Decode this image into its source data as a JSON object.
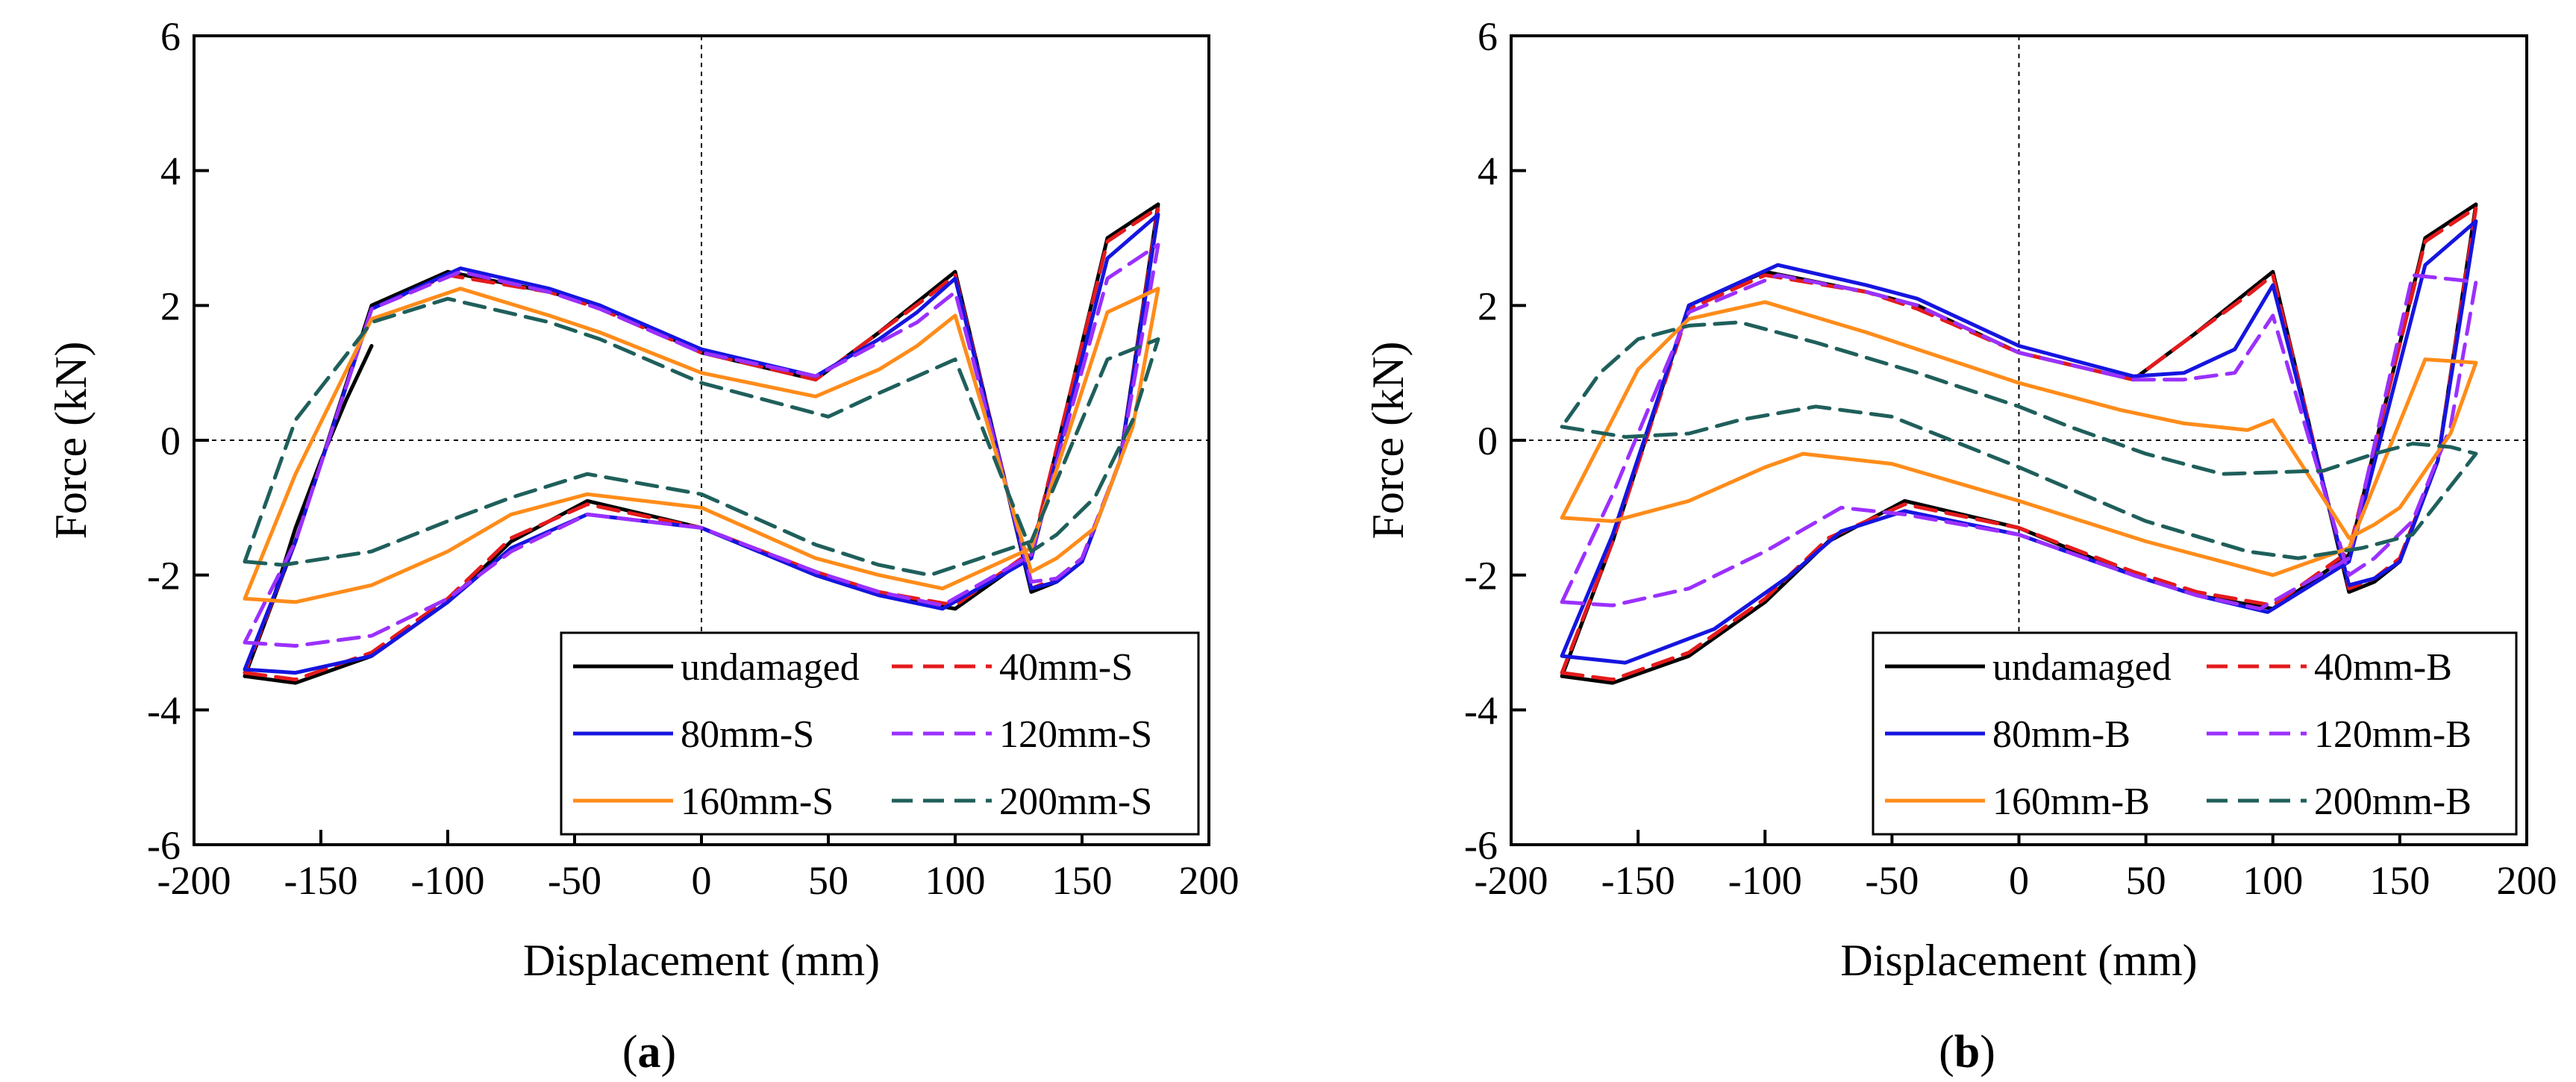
{
  "figure": {
    "panels": [
      {
        "label_open": "(",
        "label_letter": "a",
        "label_close": ")"
      },
      {
        "label_open": "(",
        "label_letter": "b",
        "label_close": ")"
      }
    ]
  },
  "chart_data": [
    {
      "type": "line",
      "panel": "a",
      "title": "",
      "xlabel": "Displacement (mm)",
      "ylabel": "Force (kN)",
      "xlim": [
        -200,
        200
      ],
      "ylim": [
        -6,
        6
      ],
      "xticks": [
        -200,
        -150,
        -100,
        -50,
        0,
        50,
        100,
        150,
        200
      ],
      "yticks": [
        -6,
        -4,
        -2,
        0,
        2,
        4,
        6
      ],
      "xtick_labels": [
        "-200",
        "-150",
        "-100",
        "-50",
        "0",
        "50",
        "100",
        "150",
        "200"
      ],
      "ytick_labels": [
        "-6",
        "-4",
        "-2",
        "0",
        "2",
        "4",
        "6"
      ],
      "grid": false,
      "reference_lines": {
        "x": 0,
        "y": 0,
        "style": "dotted"
      },
      "legend": {
        "position": "bottom-right",
        "columns": 2
      },
      "series": [
        {
          "name": "undamaged",
          "color": "#000000",
          "dash": "solid",
          "x": [
            -180,
            -160,
            -130,
            -100,
            -75,
            -45,
            0,
            45,
            70,
            100,
            130,
            160,
            180,
            165,
            150,
            140,
            130,
            100,
            90,
            70,
            45,
            0,
            -40,
            -60,
            -100,
            -130,
            -160,
            -180,
            -170,
            -160,
            -150,
            -140,
            -130
          ],
          "y": [
            -3.5,
            -3.6,
            -3.2,
            -2.4,
            -1.5,
            -0.9,
            -1.3,
            -2.0,
            -2.3,
            -2.5,
            -1.7,
            3.0,
            3.5,
            -0.3,
            -1.8,
            -2.1,
            -2.25,
            2.5,
            2.2,
            1.6,
            0.9,
            1.3,
            2.0,
            2.2,
            2.5,
            2.0,
            -1.5,
            -3.5,
            -2.5,
            -1.3,
            -0.3,
            0.6,
            1.4
          ]
        },
        {
          "name": "40mm-S",
          "color": "#e41a1c",
          "dash": "dashed",
          "x": [
            -180,
            -160,
            -130,
            -100,
            -75,
            -45,
            0,
            45,
            70,
            100,
            130,
            160,
            180,
            165,
            150,
            140,
            130,
            100,
            90,
            70,
            45,
            0,
            -40,
            -60,
            -100,
            -130,
            -160,
            -180
          ],
          "y": [
            -3.45,
            -3.55,
            -3.15,
            -2.35,
            -1.45,
            -0.95,
            -1.3,
            -1.95,
            -2.25,
            -2.45,
            -1.65,
            2.95,
            3.45,
            -0.3,
            -1.75,
            -2.05,
            -2.2,
            2.45,
            2.15,
            1.6,
            0.9,
            1.3,
            1.95,
            2.2,
            2.45,
            1.95,
            -1.5,
            -3.45
          ]
        },
        {
          "name": "80mm-S",
          "color": "#1515e0",
          "dash": "solid",
          "x": [
            -180,
            -160,
            -130,
            -100,
            -75,
            -45,
            0,
            45,
            70,
            95,
            130,
            160,
            180,
            165,
            150,
            140,
            130,
            100,
            85,
            70,
            45,
            0,
            -40,
            -60,
            -95,
            -130,
            -160,
            -180
          ],
          "y": [
            -3.4,
            -3.45,
            -3.2,
            -2.4,
            -1.6,
            -1.1,
            -1.3,
            -2.0,
            -2.3,
            -2.5,
            -1.75,
            2.7,
            3.35,
            -0.3,
            -1.8,
            -2.1,
            -2.2,
            2.4,
            1.9,
            1.5,
            0.95,
            1.35,
            2.0,
            2.25,
            2.55,
            1.95,
            -1.5,
            -3.4
          ]
        },
        {
          "name": "120mm-S",
          "color": "#9b30ff",
          "dash": "dashed",
          "x": [
            -180,
            -160,
            -130,
            -100,
            -75,
            -45,
            0,
            45,
            70,
            95,
            130,
            160,
            180,
            165,
            150,
            140,
            130,
            100,
            85,
            70,
            45,
            0,
            -40,
            -60,
            -95,
            -130,
            -160,
            -180
          ],
          "y": [
            -3.0,
            -3.05,
            -2.9,
            -2.35,
            -1.65,
            -1.1,
            -1.3,
            -1.95,
            -2.25,
            -2.45,
            -1.7,
            2.4,
            2.9,
            -0.3,
            -1.75,
            -2.05,
            -2.1,
            2.2,
            1.75,
            1.45,
            0.95,
            1.3,
            1.95,
            2.2,
            2.5,
            1.95,
            -1.5,
            -3.0
          ]
        },
        {
          "name": "160mm-S",
          "color": "#ff8c1a",
          "dash": "solid",
          "x": [
            -180,
            -160,
            -130,
            -100,
            -75,
            -45,
            0,
            45,
            70,
            95,
            130,
            160,
            180,
            170,
            155,
            140,
            130,
            100,
            85,
            70,
            45,
            0,
            -40,
            -60,
            -95,
            -130,
            -160,
            -180
          ],
          "y": [
            -2.35,
            -2.4,
            -2.15,
            -1.65,
            -1.1,
            -0.8,
            -1.0,
            -1.75,
            -2.0,
            -2.2,
            -1.6,
            1.9,
            2.25,
            0.2,
            -1.3,
            -1.75,
            -1.95,
            1.85,
            1.4,
            1.05,
            0.65,
            1.0,
            1.6,
            1.85,
            2.25,
            1.8,
            -0.5,
            -2.35
          ]
        },
        {
          "name": "200mm-S",
          "color": "#1f5f5b",
          "dash": "dashed",
          "x": [
            -180,
            -165,
            -130,
            -100,
            -75,
            -45,
            0,
            45,
            70,
            90,
            130,
            160,
            180,
            170,
            155,
            140,
            130,
            100,
            85,
            70,
            50,
            0,
            -40,
            -60,
            -100,
            -130,
            -160,
            -180
          ],
          "y": [
            -1.8,
            -1.85,
            -1.65,
            -1.2,
            -0.85,
            -0.5,
            -0.8,
            -1.55,
            -1.85,
            -2.0,
            -1.5,
            1.2,
            1.5,
            0.3,
            -0.85,
            -1.4,
            -1.65,
            1.2,
            0.95,
            0.7,
            0.35,
            0.85,
            1.5,
            1.75,
            2.1,
            1.75,
            0.3,
            -1.8
          ]
        }
      ]
    },
    {
      "type": "line",
      "panel": "b",
      "title": "",
      "xlabel": "Displacement (mm)",
      "ylabel": "Force (kN)",
      "xlim": [
        -200,
        200
      ],
      "ylim": [
        -6,
        6
      ],
      "xticks": [
        -200,
        -150,
        -100,
        -50,
        0,
        50,
        100,
        150,
        200
      ],
      "yticks": [
        -6,
        -4,
        -2,
        0,
        2,
        4,
        6
      ],
      "xtick_labels": [
        "-200",
        "-150",
        "-100",
        "-50",
        "0",
        "50",
        "100",
        "150",
        "200"
      ],
      "ytick_labels": [
        "-6",
        "-4",
        "-2",
        "0",
        "2",
        "4",
        "6"
      ],
      "grid": false,
      "reference_lines": {
        "x": 0,
        "y": 0,
        "style": "dotted"
      },
      "legend": {
        "position": "bottom-right",
        "columns": 2
      },
      "series": [
        {
          "name": "undamaged",
          "color": "#000000",
          "dash": "solid",
          "x": [
            -180,
            -160,
            -130,
            -100,
            -75,
            -45,
            0,
            45,
            70,
            100,
            130,
            160,
            180,
            165,
            150,
            140,
            130,
            100,
            90,
            70,
            45,
            0,
            -40,
            -60,
            -100,
            -130,
            -160,
            -180
          ],
          "y": [
            -3.5,
            -3.6,
            -3.2,
            -2.4,
            -1.5,
            -0.9,
            -1.3,
            -2.0,
            -2.3,
            -2.5,
            -1.7,
            3.0,
            3.5,
            -0.3,
            -1.8,
            -2.1,
            -2.25,
            2.5,
            2.2,
            1.6,
            0.9,
            1.3,
            2.0,
            2.2,
            2.5,
            2.0,
            -1.5,
            -3.5
          ]
        },
        {
          "name": "40mm-B",
          "color": "#e41a1c",
          "dash": "dashed",
          "x": [
            -180,
            -160,
            -130,
            -100,
            -75,
            -45,
            0,
            45,
            70,
            100,
            130,
            160,
            180,
            165,
            150,
            140,
            130,
            100,
            90,
            70,
            45,
            0,
            -40,
            -60,
            -100,
            -130,
            -160,
            -180
          ],
          "y": [
            -3.45,
            -3.55,
            -3.15,
            -2.35,
            -1.45,
            -0.95,
            -1.3,
            -1.95,
            -2.25,
            -2.45,
            -1.65,
            2.95,
            3.45,
            -0.3,
            -1.75,
            -2.05,
            -2.2,
            2.45,
            2.15,
            1.6,
            0.9,
            1.3,
            1.95,
            2.2,
            2.45,
            1.95,
            -1.5,
            -3.45
          ]
        },
        {
          "name": "80mm-B",
          "color": "#1515e0",
          "dash": "solid",
          "x": [
            -180,
            -155,
            -120,
            -90,
            -70,
            -45,
            0,
            45,
            70,
            98,
            130,
            160,
            180,
            165,
            150,
            140,
            130,
            100,
            85,
            65,
            45,
            0,
            -40,
            -60,
            -95,
            -130,
            -160,
            -180
          ],
          "y": [
            -3.2,
            -3.3,
            -2.8,
            -2.0,
            -1.35,
            -1.05,
            -1.4,
            -2.0,
            -2.3,
            -2.55,
            -1.8,
            2.6,
            3.25,
            -0.3,
            -1.8,
            -2.05,
            -2.15,
            2.3,
            1.35,
            1.0,
            0.95,
            1.4,
            2.1,
            2.3,
            2.6,
            2.0,
            -1.4,
            -3.2
          ]
        },
        {
          "name": "120mm-B",
          "color": "#9b30ff",
          "dash": "dashed",
          "x": [
            -180,
            -160,
            -130,
            -100,
            -70,
            -45,
            0,
            45,
            70,
            95,
            130,
            155,
            180,
            170,
            155,
            140,
            130,
            100,
            85,
            65,
            45,
            0,
            -40,
            -60,
            -95,
            -130,
            -160,
            -180
          ],
          "y": [
            -2.4,
            -2.45,
            -2.2,
            -1.65,
            -1.0,
            -1.1,
            -1.4,
            -2.0,
            -2.3,
            -2.5,
            -1.75,
            2.45,
            2.35,
            0.2,
            -1.2,
            -1.75,
            -2.0,
            1.85,
            1.0,
            0.9,
            0.9,
            1.3,
            2.0,
            2.2,
            2.45,
            1.9,
            -0.8,
            -2.4
          ]
        },
        {
          "name": "160mm-B",
          "color": "#ff8c1a",
          "dash": "solid",
          "x": [
            -180,
            -160,
            -130,
            -100,
            -85,
            -50,
            0,
            50,
            80,
            100,
            130,
            160,
            180,
            170,
            150,
            140,
            130,
            100,
            90,
            65,
            40,
            0,
            -40,
            -60,
            -100,
            -130,
            -150,
            -180
          ],
          "y": [
            -1.15,
            -1.2,
            -0.9,
            -0.4,
            -0.2,
            -0.35,
            -0.9,
            -1.5,
            -1.8,
            -2.0,
            -1.6,
            1.2,
            1.15,
            0.1,
            -1.0,
            -1.25,
            -1.45,
            0.3,
            0.15,
            0.25,
            0.45,
            0.85,
            1.35,
            1.6,
            2.05,
            1.8,
            1.05,
            -1.15
          ]
        },
        {
          "name": "200mm-B",
          "color": "#1f5f5b",
          "dash": "dashed",
          "x": [
            -180,
            -155,
            -130,
            -110,
            -80,
            -50,
            0,
            50,
            90,
            110,
            135,
            155,
            180,
            170,
            155,
            140,
            120,
            80,
            50,
            20,
            0,
            -40,
            -80,
            -110,
            -130,
            -150,
            -165,
            -180
          ],
          "y": [
            0.2,
            0.05,
            0.1,
            0.3,
            0.5,
            0.35,
            -0.4,
            -1.2,
            -1.65,
            -1.75,
            -1.6,
            -1.4,
            -0.2,
            -0.1,
            -0.05,
            -0.2,
            -0.45,
            -0.5,
            -0.2,
            0.2,
            0.5,
            1.0,
            1.45,
            1.75,
            1.7,
            1.5,
            1.0,
            0.2
          ]
        }
      ]
    }
  ]
}
